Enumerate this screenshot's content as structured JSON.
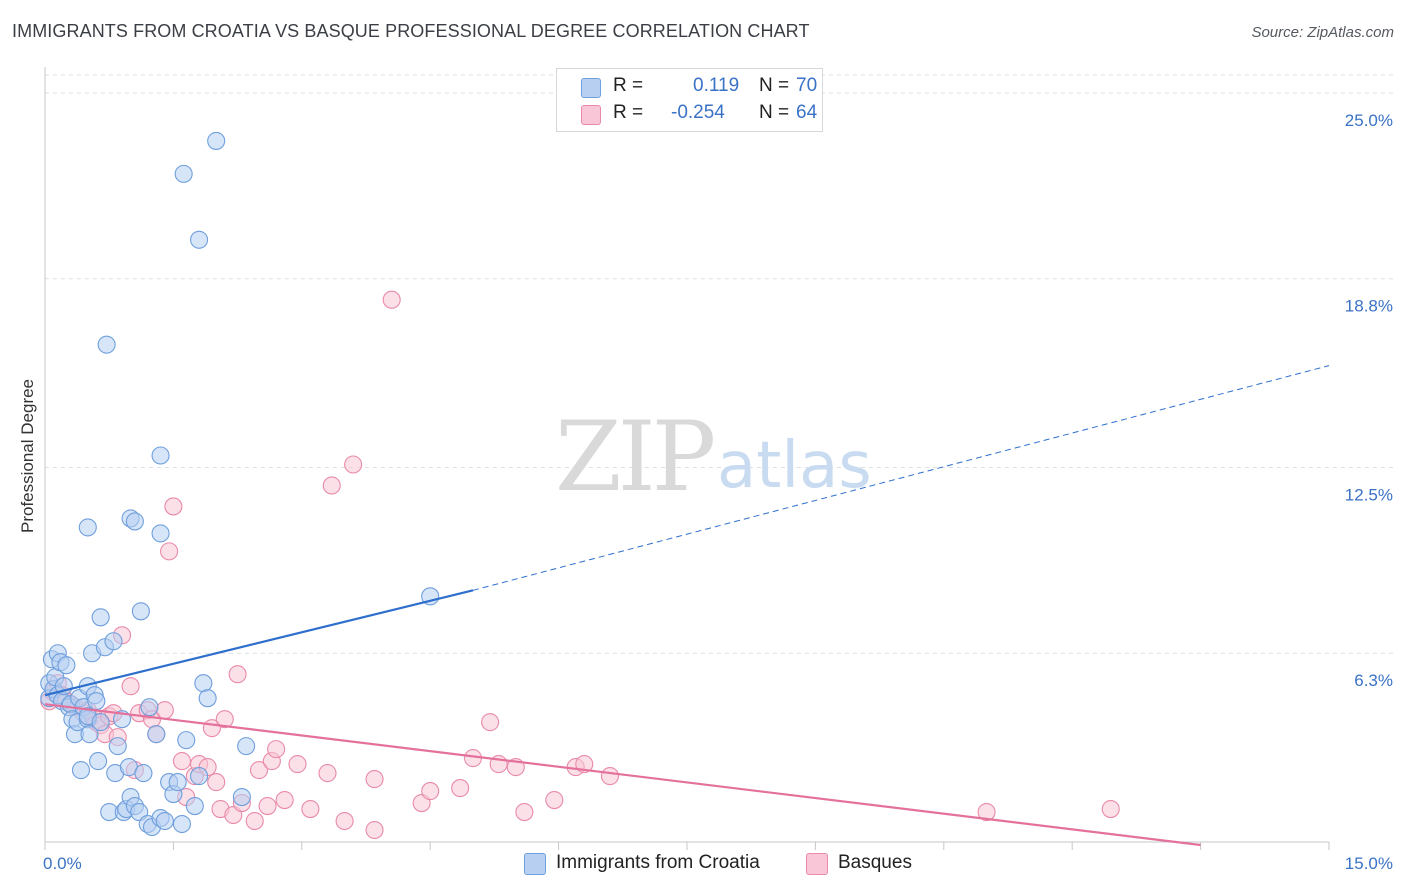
{
  "header": {
    "title": "IMMIGRANTS FROM CROATIA VS BASQUE PROFESSIONAL DEGREE CORRELATION CHART",
    "source": "Source: ZipAtlas.com"
  },
  "watermark": {
    "zip": "ZIP",
    "atlas": "atlas"
  },
  "legend_top": {
    "rows": [
      {
        "r_label": "R =",
        "r_value": "0.119",
        "n_label": "N =",
        "n_value": "70"
      },
      {
        "r_label": "R =",
        "r_value": "-0.254",
        "n_label": "N =",
        "n_value": "64"
      }
    ]
  },
  "legend_bottom": {
    "items": [
      "Immigrants from Croatia",
      "Basques"
    ]
  },
  "colors": {
    "series1_fill": "#b7d0f2",
    "series1_stroke": "#6f9fdc",
    "series1_line": "#2e6fcd",
    "series2_fill": "#f8c6d6",
    "series2_stroke": "#e98aaa",
    "series2_line": "#e4719b",
    "grid": "#dcdfe3",
    "axis_label": "#3a72c6"
  },
  "chart_data": {
    "type": "scatter",
    "title": "IMMIGRANTS FROM CROATIA VS BASQUE PROFESSIONAL DEGREE CORRELATION CHART",
    "xlabel": "",
    "ylabel": "Professional Degree",
    "xlim": [
      0,
      15
    ],
    "ylim": [
      0,
      25.6
    ],
    "x_tick_labels": [
      "0.0%",
      "15.0%"
    ],
    "y_ticks": [
      6.3,
      12.5,
      18.8,
      25.0
    ],
    "y_tick_labels": [
      "6.3%",
      "12.5%",
      "18.8%",
      "25.0%"
    ],
    "grid": true,
    "legend": "top-center",
    "series": [
      {
        "name": "Immigrants from Croatia",
        "R": 0.119,
        "N": 70,
        "trend": {
          "x0": 0,
          "y0": 4.9,
          "x1": 5.0,
          "y1": 8.4,
          "dash_to_x": 15,
          "dash_to_y": 15.9
        },
        "points": [
          [
            0.05,
            5.3
          ],
          [
            0.05,
            4.8
          ],
          [
            0.08,
            6.1
          ],
          [
            0.1,
            5.1
          ],
          [
            0.12,
            5.5
          ],
          [
            0.15,
            6.3
          ],
          [
            0.15,
            4.9
          ],
          [
            0.18,
            6.0
          ],
          [
            0.2,
            4.7
          ],
          [
            0.22,
            5.2
          ],
          [
            0.25,
            5.9
          ],
          [
            0.28,
            4.5
          ],
          [
            0.3,
            4.6
          ],
          [
            0.32,
            4.1
          ],
          [
            0.35,
            3.6
          ],
          [
            0.38,
            4.0
          ],
          [
            0.4,
            4.8
          ],
          [
            0.42,
            2.4
          ],
          [
            0.45,
            4.5
          ],
          [
            0.5,
            4.1
          ],
          [
            0.5,
            5.2
          ],
          [
            0.5,
            4.2
          ],
          [
            0.52,
            3.6
          ],
          [
            0.55,
            6.3
          ],
          [
            0.58,
            4.9
          ],
          [
            0.6,
            4.7
          ],
          [
            0.62,
            2.7
          ],
          [
            0.65,
            4.0
          ],
          [
            0.7,
            6.5
          ],
          [
            0.75,
            1.0
          ],
          [
            0.8,
            6.7
          ],
          [
            0.82,
            2.3
          ],
          [
            0.85,
            3.2
          ],
          [
            0.9,
            4.1
          ],
          [
            0.92,
            1.0
          ],
          [
            0.95,
            1.1
          ],
          [
            0.98,
            2.5
          ],
          [
            1.0,
            1.5
          ],
          [
            1.05,
            1.2
          ],
          [
            1.1,
            1.0
          ],
          [
            1.15,
            2.3
          ],
          [
            1.2,
            0.6
          ],
          [
            1.22,
            4.5
          ],
          [
            1.25,
            0.5
          ],
          [
            1.3,
            3.6
          ],
          [
            1.35,
            0.8
          ],
          [
            1.4,
            0.7
          ],
          [
            1.45,
            2.0
          ],
          [
            1.5,
            1.6
          ],
          [
            1.55,
            2.0
          ],
          [
            1.6,
            0.6
          ],
          [
            1.65,
            3.4
          ],
          [
            1.75,
            1.2
          ],
          [
            1.8,
            2.2
          ],
          [
            1.85,
            5.3
          ],
          [
            1.9,
            4.8
          ],
          [
            2.3,
            1.5
          ],
          [
            0.72,
            16.6
          ],
          [
            1.0,
            10.8
          ],
          [
            1.05,
            10.7
          ],
          [
            0.5,
            10.5
          ],
          [
            1.12,
            7.7
          ],
          [
            0.65,
            7.5
          ],
          [
            1.35,
            10.3
          ],
          [
            1.35,
            12.9
          ],
          [
            1.62,
            22.3
          ],
          [
            1.8,
            20.1
          ],
          [
            2.0,
            23.4
          ],
          [
            2.35,
            3.2
          ],
          [
            4.5,
            8.2
          ]
        ]
      },
      {
        "name": "Basques",
        "R": -0.254,
        "N": 64,
        "trend": {
          "x0": 0,
          "y0": 4.6,
          "x1": 13.5,
          "y1": -0.1
        },
        "points": [
          [
            0.05,
            4.7
          ],
          [
            0.1,
            5.0
          ],
          [
            0.15,
            5.3
          ],
          [
            0.2,
            4.9
          ],
          [
            0.25,
            4.7
          ],
          [
            0.3,
            4.6
          ],
          [
            0.35,
            4.5
          ],
          [
            0.45,
            4.3
          ],
          [
            0.55,
            4.2
          ],
          [
            0.6,
            4.0
          ],
          [
            0.65,
            3.9
          ],
          [
            0.7,
            3.6
          ],
          [
            0.75,
            4.2
          ],
          [
            0.8,
            4.3
          ],
          [
            0.85,
            3.5
          ],
          [
            0.9,
            6.9
          ],
          [
            1.0,
            5.2
          ],
          [
            1.05,
            2.4
          ],
          [
            1.1,
            4.3
          ],
          [
            1.2,
            4.4
          ],
          [
            1.25,
            4.1
          ],
          [
            1.3,
            3.6
          ],
          [
            1.4,
            4.4
          ],
          [
            1.45,
            9.7
          ],
          [
            1.5,
            11.2
          ],
          [
            1.6,
            2.7
          ],
          [
            1.65,
            1.5
          ],
          [
            1.75,
            2.2
          ],
          [
            1.8,
            2.6
          ],
          [
            1.9,
            2.5
          ],
          [
            1.95,
            3.8
          ],
          [
            2.0,
            2.0
          ],
          [
            2.05,
            1.1
          ],
          [
            2.1,
            4.1
          ],
          [
            2.2,
            0.9
          ],
          [
            2.25,
            5.6
          ],
          [
            2.3,
            1.3
          ],
          [
            2.45,
            0.7
          ],
          [
            2.5,
            2.4
          ],
          [
            2.6,
            1.2
          ],
          [
            2.65,
            2.7
          ],
          [
            2.7,
            3.1
          ],
          [
            2.8,
            1.4
          ],
          [
            2.95,
            2.6
          ],
          [
            3.1,
            1.1
          ],
          [
            3.3,
            2.3
          ],
          [
            3.5,
            0.7
          ],
          [
            3.6,
            12.6
          ],
          [
            3.35,
            11.9
          ],
          [
            3.85,
            0.4
          ],
          [
            3.85,
            2.1
          ],
          [
            4.4,
            1.3
          ],
          [
            4.5,
            1.7
          ],
          [
            4.85,
            1.8
          ],
          [
            5.0,
            2.8
          ],
          [
            5.3,
            2.6
          ],
          [
            5.5,
            2.5
          ],
          [
            5.6,
            1.0
          ],
          [
            5.95,
            1.4
          ],
          [
            6.2,
            2.5
          ],
          [
            6.3,
            2.6
          ],
          [
            6.6,
            2.2
          ],
          [
            11.0,
            1.0
          ],
          [
            12.45,
            1.1
          ]
        ],
        "extra_points": [
          [
            4.05,
            18.1
          ],
          [
            5.2,
            4.0
          ],
          [
            0.5,
            4.4
          ]
        ]
      }
    ]
  }
}
